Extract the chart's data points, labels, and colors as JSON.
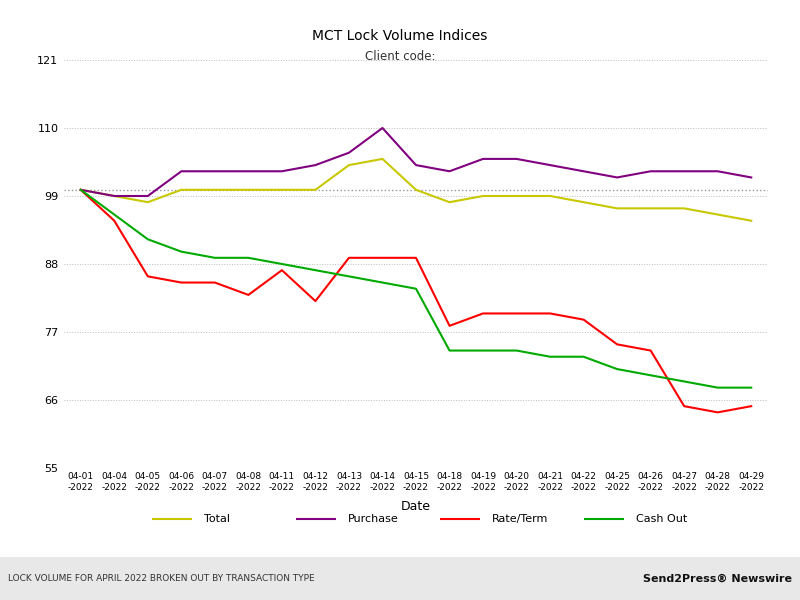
{
  "title": "MCT Lock Volume Indices",
  "subtitle": "Client code:",
  "xlabel": "Date",
  "ylabel": "",
  "ylim": [
    55,
    121
  ],
  "yticks": [
    55,
    66,
    77,
    88,
    99,
    110,
    121
  ],
  "reference_line": 100,
  "dates": [
    "04-01\n-2022",
    "04-04\n-2022",
    "04-05\n-2022",
    "04-06\n-2022",
    "04-07\n-2022",
    "04-08\n-2022",
    "04-11\n-2022",
    "04-12\n-2022",
    "04-13\n-2022",
    "04-14\n-2022",
    "04-15\n-2022",
    "04-18\n-2022",
    "04-19\n-2022",
    "04-20\n-2022",
    "04-21\n-2022",
    "04-22\n-2022",
    "04-25\n-2022",
    "04-26\n-2022",
    "04-27\n-2022",
    "04-28\n-2022",
    "04-29\n-2022"
  ],
  "series": {
    "Total": {
      "color": "#c8c800",
      "values": [
        100,
        99,
        98,
        100,
        100,
        100,
        100,
        100,
        104,
        105,
        100,
        98,
        99,
        99,
        99,
        98,
        97,
        97,
        97,
        96,
        95
      ]
    },
    "Purchase": {
      "color": "#800080",
      "values": [
        100,
        99,
        99,
        103,
        103,
        103,
        103,
        104,
        106,
        110,
        104,
        103,
        105,
        105,
        104,
        103,
        102,
        103,
        103,
        103,
        102
      ]
    },
    "Rate/Term": {
      "color": "#ff0000",
      "values": [
        100,
        95,
        86,
        85,
        85,
        83,
        87,
        82,
        89,
        89,
        89,
        78,
        80,
        80,
        80,
        79,
        75,
        74,
        65,
        64,
        65
      ]
    },
    "Cash Out": {
      "color": "#00aa00",
      "values": [
        100,
        96,
        92,
        90,
        89,
        89,
        88,
        87,
        86,
        85,
        84,
        74,
        74,
        74,
        73,
        73,
        71,
        70,
        69,
        68,
        68
      ]
    }
  },
  "legend_order": [
    "Total",
    "Purchase",
    "Rate/Term",
    "Cash Out"
  ],
  "background_color": "#ffffff",
  "grid_color": "#bbbbbb",
  "footer_left": "LOCK VOLUME FOR APRIL 2022 BROKEN OUT BY TRANSACTION TYPE",
  "footer_right": "Send2Press® Newswire",
  "footer_bg": "#e8e8e8"
}
